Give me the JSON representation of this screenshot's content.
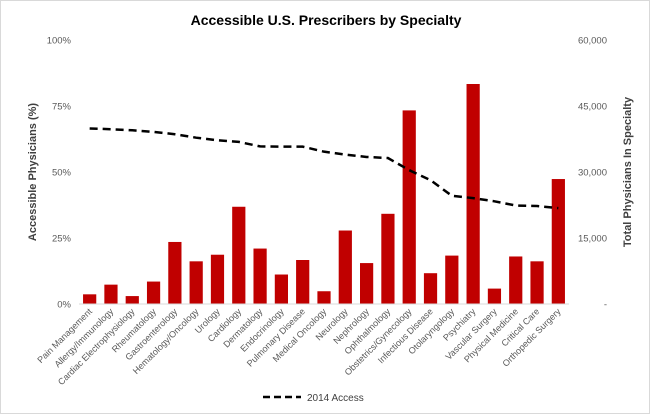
{
  "chart_data": {
    "type": "bar",
    "title": "Accessible U.S. Prescribers  by Specialty",
    "y_left_label": "Accessible Physicians (%)",
    "y_right_label": "Total Physicians In Specialty",
    "y_left_ticks": [
      "0%",
      "25%",
      "50%",
      "75%",
      "100%"
    ],
    "y_left_range": [
      0,
      100
    ],
    "y_right_ticks": [
      "-",
      "15,000",
      "30,000",
      "45,000",
      "60,000"
    ],
    "y_right_range": [
      0,
      60000
    ],
    "grid": false,
    "legend_position": "bottom",
    "categories": [
      "Pain Management",
      "Allergy/Immunology",
      "Cardiac Electrophysiology",
      "Rheumatology",
      "Gastroenterology",
      "Hematology/Oncology",
      "Urology",
      "Cardiology",
      "Dermatology",
      "Endocrinology",
      "Pulmonary Disease",
      "Medical Oncology",
      "Neurology",
      "Nephrology",
      "Ophthalmology",
      "Obstetrics/Gynecology",
      "Infectious Disease",
      "Otolaryngology",
      "Psychiatry",
      "Vascular Surgery",
      "Physical Medicine",
      "Critical Care",
      "Orthopedic Surgery"
    ],
    "bars": {
      "axis": "right",
      "color": "#c00000",
      "values": [
        2200,
        4400,
        1800,
        5100,
        14100,
        9700,
        11200,
        22100,
        12600,
        6700,
        10000,
        2900,
        16700,
        9300,
        20500,
        44000,
        7000,
        11000,
        50000,
        3500,
        10800,
        9700,
        28400
      ]
    },
    "series": [
      {
        "name": "2014 Access",
        "axis": "left",
        "style": "dashed",
        "color": "#000000",
        "values": [
          66.5,
          66.2,
          65.8,
          65.2,
          64.3,
          63.0,
          62.0,
          61.4,
          59.7,
          59.6,
          59.6,
          57.7,
          56.6,
          55.7,
          55.3,
          50.7,
          46.9,
          41.0,
          40.1,
          38.9,
          37.3,
          37.1,
          36.3
        ]
      }
    ]
  }
}
